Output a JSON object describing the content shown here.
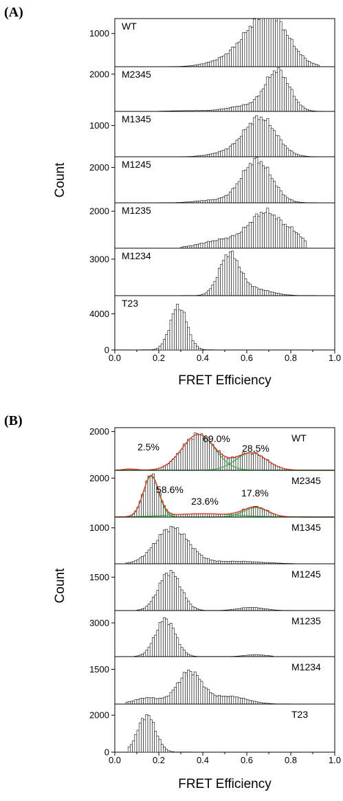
{
  "figure": {
    "panels": [
      {
        "label": "(A)",
        "xlabel": "FRET Efficiency",
        "ylabel": "Count",
        "x_ticks": [
          "0.0",
          "0.2",
          "0.4",
          "0.6",
          "0.8",
          "1.0"
        ]
      },
      {
        "label": "(B)",
        "xlabel": "FRET Efficiency",
        "ylabel": "Count",
        "x_ticks": [
          "0.0",
          "0.2",
          "0.4",
          "0.6",
          "0.8",
          "1.0"
        ]
      }
    ]
  },
  "chart_data": [
    {
      "type": "bar",
      "panel": "(A)",
      "xlabel": "FRET Efficiency",
      "ylabel": "Count",
      "xlim": [
        0.0,
        1.0
      ],
      "bin_width": 0.01,
      "x_ticks": [
        0.0,
        0.2,
        0.4,
        0.6,
        0.8,
        1.0
      ],
      "legend": "none",
      "subplots": [
        {
          "name": "WT",
          "ylim": [
            0,
            1450
          ],
          "yticks": [
            1000
          ],
          "components": [
            {
              "mu": 0.72,
              "sigma": 0.08,
              "amp": 1250
            },
            {
              "mu": 0.62,
              "sigma": 0.08,
              "amp": 650
            },
            {
              "mu": 0.48,
              "sigma": 0.08,
              "amp": 120
            }
          ],
          "range": [
            0.25,
            0.93
          ]
        },
        {
          "name": "M2345",
          "ylim": [
            0,
            2400
          ],
          "yticks": [
            2000
          ],
          "components": [
            {
              "mu": 0.74,
              "sigma": 0.055,
              "amp": 2150
            },
            {
              "mu": 0.6,
              "sigma": 0.08,
              "amp": 300
            },
            {
              "mu": 0.35,
              "sigma": 0.1,
              "amp": 40
            }
          ],
          "range": [
            0.2,
            0.95
          ]
        },
        {
          "name": "M1345",
          "ylim": [
            0,
            1450
          ],
          "yticks": [
            1000
          ],
          "components": [
            {
              "mu": 0.66,
              "sigma": 0.072,
              "amp": 1250
            },
            {
              "mu": 0.5,
              "sigma": 0.07,
              "amp": 120
            }
          ],
          "range": [
            0.3,
            0.92
          ]
        },
        {
          "name": "M1245",
          "ylim": [
            0,
            2600
          ],
          "yticks": [
            2000
          ],
          "components": [
            {
              "mu": 0.645,
              "sigma": 0.068,
              "amp": 2400
            },
            {
              "mu": 0.45,
              "sigma": 0.08,
              "amp": 150
            }
          ],
          "range": [
            0.2,
            0.92
          ]
        },
        {
          "name": "M1235",
          "ylim": [
            0,
            2450
          ],
          "yticks": [
            2000
          ],
          "components": [
            {
              "mu": 0.69,
              "sigma": 0.075,
              "amp": 1900
            },
            {
              "mu": 0.82,
              "sigma": 0.04,
              "amp": 500
            },
            {
              "mu": 0.5,
              "sigma": 0.1,
              "amp": 450
            }
          ],
          "range": [
            0.3,
            0.87
          ]
        },
        {
          "name": "M1234",
          "ylim": [
            0,
            3900
          ],
          "yticks": [
            3000
          ],
          "components": [
            {
              "mu": 0.52,
              "sigma": 0.045,
              "amp": 3250
            },
            {
              "mu": 0.62,
              "sigma": 0.08,
              "amp": 600
            }
          ],
          "range": [
            0.3,
            0.92
          ]
        },
        {
          "name": "T23",
          "ylim": [
            0,
            6000
          ],
          "yticks": [
            0,
            4000
          ],
          "components": [
            {
              "mu": 0.29,
              "sigma": 0.038,
              "amp": 4850
            }
          ],
          "range": [
            0.12,
            0.45
          ]
        }
      ]
    },
    {
      "type": "bar",
      "panel": "(B)",
      "xlabel": "FRET Efficiency",
      "ylabel": "Count",
      "xlim": [
        0.0,
        1.0
      ],
      "bin_width": 0.01,
      "x_ticks": [
        0.0,
        0.2,
        0.4,
        0.6,
        0.8,
        1.0
      ],
      "legend": "none",
      "fit_colors": {
        "total_fit": "#ee3b2c",
        "component_fit": "#2fae3f"
      },
      "subplots": [
        {
          "name": "WT",
          "ylim": [
            0,
            2200
          ],
          "yticks": [
            2000
          ],
          "components": [
            {
              "mu": 0.38,
              "sigma": 0.075,
              "amp": 1850
            },
            {
              "mu": 0.62,
              "sigma": 0.07,
              "amp": 900
            },
            {
              "mu": 0.07,
              "sigma": 0.03,
              "amp": 70
            }
          ],
          "range": [
            0.04,
            1.0
          ],
          "fit": true,
          "annotations": [
            "2.5%",
            "69.0%",
            "28.5%"
          ]
        },
        {
          "name": "M2345",
          "ylim": [
            0,
            2400
          ],
          "yticks": [
            2000
          ],
          "components": [
            {
              "mu": 0.165,
              "sigma": 0.035,
              "amp": 2100
            },
            {
              "mu": 0.64,
              "sigma": 0.055,
              "amp": 480
            },
            {
              "mu": 0.4,
              "sigma": 0.15,
              "amp": 170
            }
          ],
          "range": [
            0.02,
            0.9
          ],
          "fit": true,
          "annotations": [
            "58.6%",
            "23.6%",
            "17.8%"
          ]
        },
        {
          "name": "M1345",
          "ylim": [
            0,
            1300
          ],
          "yticks": [
            1000
          ],
          "components": [
            {
              "mu": 0.26,
              "sigma": 0.075,
              "amp": 1000
            },
            {
              "mu": 0.55,
              "sigma": 0.12,
              "amp": 70
            }
          ],
          "range": [
            0.05,
            0.82
          ]
        },
        {
          "name": "M1245",
          "ylim": [
            0,
            2100
          ],
          "yticks": [
            1500
          ],
          "components": [
            {
              "mu": 0.25,
              "sigma": 0.05,
              "amp": 1750
            },
            {
              "mu": 0.62,
              "sigma": 0.06,
              "amp": 140
            }
          ],
          "range": [
            0.1,
            0.8
          ]
        },
        {
          "name": "M1235",
          "ylim": [
            0,
            4100
          ],
          "yticks": [
            3000
          ],
          "components": [
            {
              "mu": 0.23,
              "sigma": 0.045,
              "amp": 3350
            },
            {
              "mu": 0.64,
              "sigma": 0.05,
              "amp": 170
            }
          ],
          "range": [
            0.09,
            0.72
          ]
        },
        {
          "name": "M1234",
          "ylim": [
            0,
            2050
          ],
          "yticks": [
            1500
          ],
          "components": [
            {
              "mu": 0.34,
              "sigma": 0.055,
              "amp": 1400
            },
            {
              "mu": 0.52,
              "sigma": 0.08,
              "amp": 330
            },
            {
              "mu": 0.15,
              "sigma": 0.06,
              "amp": 270
            }
          ],
          "range": [
            0.05,
            0.8
          ]
        },
        {
          "name": "T23",
          "ylim": [
            0,
            2600
          ],
          "yticks": [
            0,
            2000
          ],
          "components": [
            {
              "mu": 0.145,
              "sigma": 0.04,
              "amp": 2000
            }
          ],
          "range": [
            0.06,
            0.35
          ]
        }
      ]
    }
  ]
}
